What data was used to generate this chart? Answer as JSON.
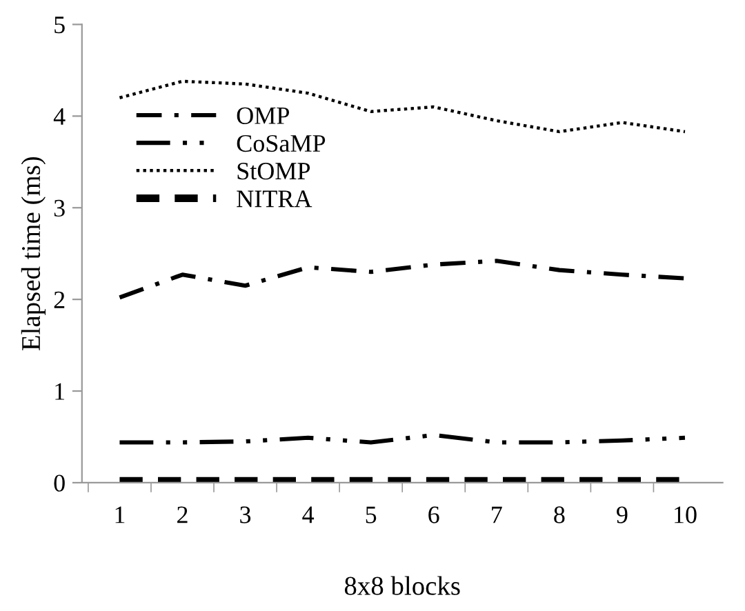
{
  "chart_data": {
    "type": "line",
    "xlabel": "8x8 blocks",
    "ylabel": "Elapsed time (ms)",
    "categories": [
      "1",
      "2",
      "3",
      "4",
      "5",
      "6",
      "7",
      "8",
      "9",
      "10"
    ],
    "ylim": [
      0,
      5
    ],
    "yticks": [
      0,
      1,
      2,
      3,
      4,
      5
    ],
    "grid": false,
    "legend": "top left",
    "marker": "none",
    "series": [
      {
        "name": "OMP",
        "color": "#000000",
        "line_style": "dashdot",
        "values": [
          2.02,
          2.27,
          2.15,
          2.35,
          2.3,
          2.38,
          2.42,
          2.32,
          2.27,
          2.23
        ]
      },
      {
        "name": "CoSaMP",
        "color": "#000000",
        "line_style": "dashdotdot",
        "values": [
          0.44,
          0.44,
          0.45,
          0.49,
          0.44,
          0.52,
          0.44,
          0.44,
          0.46,
          0.49
        ]
      },
      {
        "name": "StOMP",
        "color": "#000000",
        "line_style": "dotted",
        "values": [
          4.2,
          4.38,
          4.35,
          4.25,
          4.05,
          4.1,
          3.95,
          3.83,
          3.93,
          3.83
        ]
      },
      {
        "name": "NITRA",
        "color": "#000000",
        "line_style": "dashed",
        "values": [
          0.02,
          0.02,
          0.02,
          0.02,
          0.02,
          0.02,
          0.02,
          0.02,
          0.02,
          0.02
        ]
      }
    ]
  }
}
